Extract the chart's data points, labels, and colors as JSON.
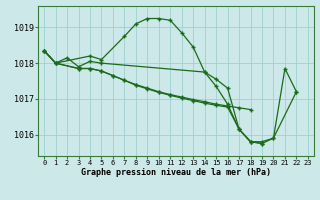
{
  "bg_color": "#cce8e8",
  "grid_color": "#9fcfcf",
  "line_color": "#1a6b1a",
  "marker": "+",
  "title": "Graphe pression niveau de la mer (hPa)",
  "xlim": [
    -0.5,
    23.5
  ],
  "ylim": [
    1015.4,
    1019.6
  ],
  "yticks": [
    1016,
    1017,
    1018,
    1019
  ],
  "xticks": [
    0,
    1,
    2,
    3,
    4,
    5,
    6,
    7,
    8,
    9,
    10,
    11,
    12,
    13,
    14,
    15,
    16,
    17,
    18,
    19,
    20,
    21,
    22,
    23
  ],
  "series": [
    [
      1018.35,
      1018.0,
      null,
      null,
      1018.2,
      1018.1,
      null,
      1018.75,
      1019.1,
      1019.25,
      1019.25,
      1019.2,
      1018.85,
      1018.45,
      1017.75,
      1017.35,
      1016.85,
      1016.15,
      1015.8,
      1015.8,
      1015.9,
      1017.85,
      1017.2,
      null
    ],
    [
      1018.35,
      1018.0,
      1018.15,
      1017.9,
      1018.05,
      1018.0,
      null,
      null,
      null,
      null,
      null,
      null,
      null,
      null,
      1017.75,
      1017.55,
      1017.3,
      1016.15,
      1015.8,
      1015.75,
      null,
      null,
      null,
      null
    ],
    [
      1018.35,
      1018.0,
      null,
      1017.85,
      1017.85,
      1017.78,
      1017.65,
      1017.52,
      1017.4,
      1017.3,
      1017.2,
      1017.12,
      1017.05,
      1016.98,
      1016.92,
      1016.85,
      1016.8,
      1016.75,
      1016.7,
      null,
      null,
      null,
      null,
      null
    ],
    [
      1018.35,
      1018.0,
      null,
      1017.85,
      1017.85,
      1017.78,
      1017.65,
      1017.52,
      1017.38,
      1017.28,
      1017.18,
      1017.1,
      1017.02,
      1016.95,
      1016.88,
      1016.82,
      1016.77,
      1016.15,
      1015.8,
      1015.75,
      1015.9,
      null,
      1017.2,
      null
    ]
  ]
}
